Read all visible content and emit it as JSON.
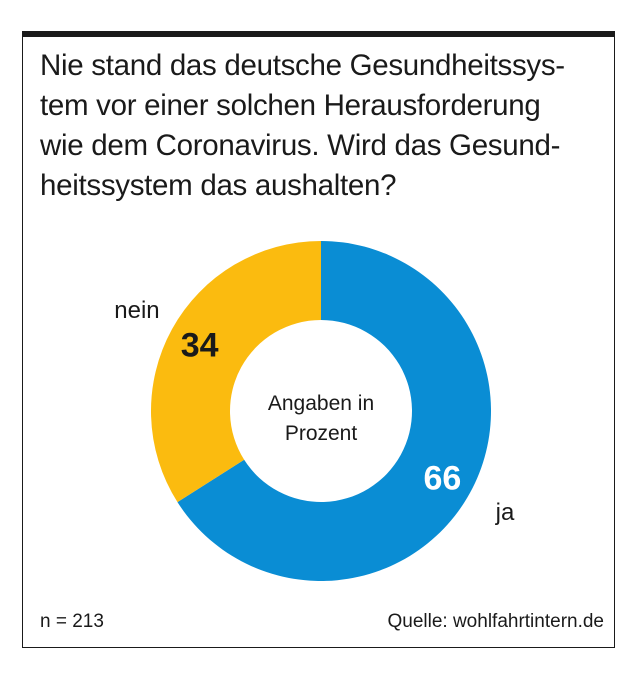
{
  "title_lines": [
    "Nie stand das deutsche Gesundheitssys-",
    "tem vor einer solchen Herausforderung",
    "wie dem Coronavirus. Wird das Gesund-",
    "heitssystem das aushalten?"
  ],
  "center_label": [
    "Angaben in",
    "Prozent"
  ],
  "footer": {
    "sample": "n = 213",
    "source": "Quelle: wohlfahrtintern.de"
  },
  "colors": {
    "ja": "#0a8dd4",
    "nein": "#fbbb0f",
    "frame": "#1a1a1a"
  },
  "chart_data": {
    "type": "pie",
    "variant": "donut",
    "categories": [
      "ja",
      "nein"
    ],
    "values": [
      66,
      34
    ],
    "unit": "Prozent"
  }
}
